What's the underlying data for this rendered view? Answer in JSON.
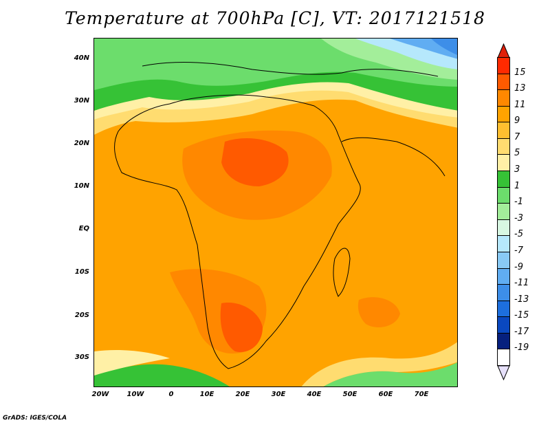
{
  "title": "Temperature at 700hPa [C], VT: 2017121518",
  "credit": "GrADS: IGES/COLA",
  "map": {
    "lat_labels": [
      "40N",
      "30N",
      "20N",
      "10N",
      "EQ",
      "10S",
      "20S",
      "30S"
    ],
    "lon_labels": [
      "20W",
      "10W",
      "0",
      "10E",
      "20E",
      "30E",
      "40E",
      "50E",
      "60E",
      "70E"
    ]
  },
  "colorbar": {
    "labels": [
      "15",
      "13",
      "11",
      "9",
      "7",
      "5",
      "3",
      "1",
      "-1",
      "-3",
      "-5",
      "-7",
      "-9",
      "-11",
      "-13",
      "-15",
      "-17",
      "-19"
    ],
    "colors": [
      "#ff2a00",
      "#ff5a00",
      "#ff8800",
      "#ffa300",
      "#ffbf30",
      "#ffdc70",
      "#fff0a6",
      "#36c236",
      "#6cdd6c",
      "#a3ee9a",
      "#d8f7e2",
      "#b6e8fc",
      "#89caf5",
      "#60adf2",
      "#3d8ee8",
      "#1d6fde",
      "#0a48c0",
      "#06207e",
      "#ffffff"
    ],
    "top_triangle": "#e0200a",
    "bottom_triangle": "#e6e0fa"
  }
}
